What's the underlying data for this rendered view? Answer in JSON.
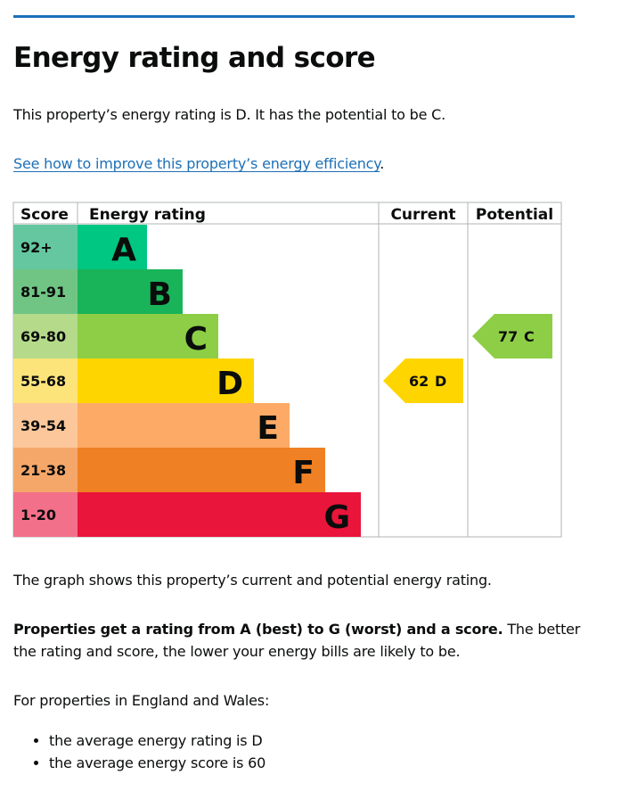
{
  "heading": "Energy rating and score",
  "summary": "This property’s energy rating is D. It has the potential to be C.",
  "improve_link": "See how to improve this property’s energy efficiency",
  "improve_link_suffix": ".",
  "graph_note": "The graph shows this property’s current and potential energy rating.",
  "rating_info_bold": "Properties get a rating from A (best) to G (worst) and a score.",
  "rating_info_rest": " The better the rating and score, the lower your energy bills are likely to be.",
  "region_intro": "For properties in England and Wales:",
  "averages": [
    "the average energy rating is D",
    "the average energy score is 60"
  ],
  "chart_data": {
    "type": "bar",
    "headers": {
      "score": "Score",
      "rating": "Energy rating",
      "current": "Current",
      "potential": "Potential"
    },
    "bands": [
      {
        "letter": "A",
        "range": "92+",
        "bar_color": "#00c781",
        "score_color": "#64c7a0"
      },
      {
        "letter": "B",
        "range": "81-91",
        "bar_color": "#19b459",
        "score_color": "#70c585"
      },
      {
        "letter": "C",
        "range": "69-80",
        "bar_color": "#8dce46",
        "score_color": "#b5da8a"
      },
      {
        "letter": "D",
        "range": "55-68",
        "bar_color": "#ffd500",
        "score_color": "#fde47a"
      },
      {
        "letter": "E",
        "range": "39-54",
        "bar_color": "#fcaa65",
        "score_color": "#fcc79a"
      },
      {
        "letter": "F",
        "range": "21-38",
        "bar_color": "#ef8023",
        "score_color": "#f5a76a"
      },
      {
        "letter": "G",
        "range": "1-20",
        "bar_color": "#e9153b",
        "score_color": "#f3708a"
      }
    ],
    "current": {
      "score": 62,
      "letter": "D",
      "label_score": "62",
      "label_letter": "D",
      "color": "#ffd500"
    },
    "potential": {
      "score": 77,
      "letter": "C",
      "label_score": "77",
      "label_letter": "C",
      "color": "#8dce46"
    }
  }
}
